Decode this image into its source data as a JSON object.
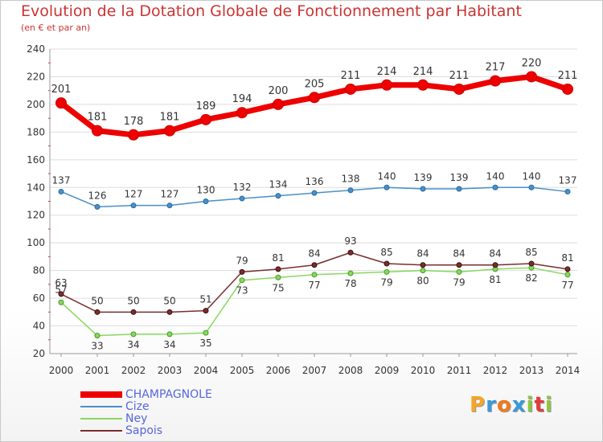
{
  "header": {
    "title": "Evolution de la Dotation Globale de Fonctionnement par Habitant",
    "subtitle": "(en € et par an)"
  },
  "logo": {
    "letters": [
      "P",
      "r",
      "o",
      "x",
      "i",
      "t",
      "i"
    ],
    "colors": [
      "#f5a623",
      "#3a9ad9",
      "#f07a1a",
      "#3a9ad9",
      "#8cc63f",
      "#e23b3b",
      "#8cc63f"
    ]
  },
  "chart_data": {
    "type": "line",
    "title": "Evolution de la Dotation Globale de Fonctionnement par Habitant",
    "subtitle": "(en € et par an)",
    "x": [
      "2000",
      "2001",
      "2002",
      "2003",
      "2004",
      "2005",
      "2006",
      "2007",
      "2008",
      "2009",
      "2010",
      "2011",
      "2012",
      "2013",
      "2014"
    ],
    "ylim": [
      20,
      240
    ],
    "yticks": [
      20,
      40,
      60,
      80,
      100,
      120,
      140,
      160,
      180,
      200,
      220,
      240
    ],
    "grid": "horizontal",
    "legend_position": "bottom-left",
    "series": [
      {
        "name": "CHAMPAGNOLE",
        "color": "#ee0000",
        "values": [
          201,
          181,
          178,
          181,
          189,
          194,
          200,
          205,
          211,
          214,
          214,
          211,
          217,
          220,
          211
        ]
      },
      {
        "name": "Cize",
        "color": "#4a90c8",
        "values": [
          137,
          126,
          127,
          127,
          130,
          132,
          134,
          136,
          138,
          140,
          139,
          139,
          140,
          140,
          137
        ]
      },
      {
        "name": "Ney",
        "color": "#88d860",
        "values": [
          57,
          33,
          34,
          34,
          35,
          73,
          75,
          77,
          78,
          79,
          80,
          79,
          81,
          82,
          77
        ]
      },
      {
        "name": "Sapois",
        "color": "#7a2e2e",
        "values": [
          63,
          50,
          50,
          50,
          51,
          79,
          81,
          84,
          93,
          85,
          84,
          84,
          84,
          85,
          81
        ]
      }
    ]
  }
}
